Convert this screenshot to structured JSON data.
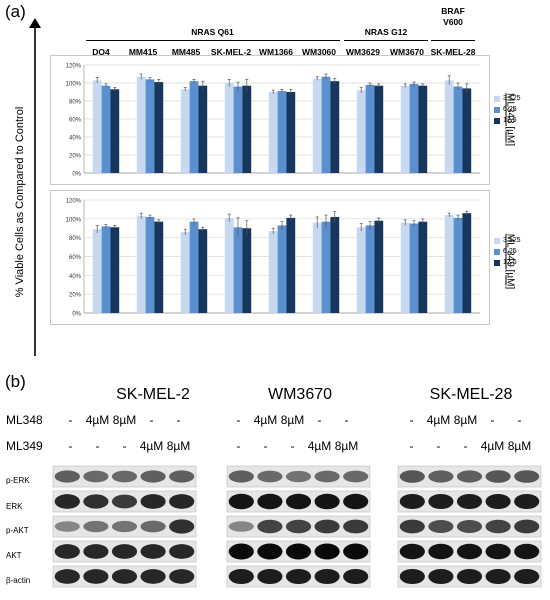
{
  "panel_a_label": "(a)",
  "panel_b_label": "(b)",
  "y_axis_label": "% Viable Cells as Compared to Control",
  "groups": [
    {
      "name": "NRAS Q61",
      "lines": [
        "DO4",
        "MM415",
        "MM485",
        "SK-MEL-2",
        "WM1366",
        "WM3060"
      ]
    },
    {
      "name": "NRAS G12",
      "lines": [
        "WM3629",
        "WM3670"
      ]
    },
    {
      "name": "BRAF\nV600",
      "lines": [
        "SK-MEL-28"
      ]
    }
  ],
  "colors": {
    "c1": "#c6d9f1",
    "c2": "#5b8fd0",
    "c3": "#17365d"
  },
  "chart_data": [
    {
      "type": "bar",
      "categories": [
        "DO4",
        "MM415",
        "MM485",
        "SK-MEL-2",
        "WM1366",
        "WM3060",
        "WM3629",
        "WM3670",
        "SK-MEL-28"
      ],
      "series": [
        {
          "name": "3.125",
          "values": [
            103,
            107,
            93,
            100,
            90,
            105,
            92,
            97,
            103
          ]
        },
        {
          "name": "6.25",
          "values": [
            97,
            104,
            102,
            96,
            91,
            107,
            98,
            99,
            96
          ]
        },
        {
          "name": "12.5",
          "values": [
            93,
            101,
            97,
            97,
            90,
            102,
            97,
            97,
            94
          ]
        }
      ],
      "errors": [
        [
          3,
          3,
          2,
          4,
          2,
          2,
          3,
          2,
          5
        ],
        [
          2,
          2,
          2,
          5,
          2,
          3,
          2,
          2,
          4
        ],
        [
          2,
          3,
          5,
          7,
          3,
          3,
          2,
          2,
          5
        ]
      ],
      "ylabel": "ML348 [µM]",
      "ylim": [
        0,
        120
      ],
      "yticks": [
        "0%",
        "20%",
        "40%",
        "60%",
        "80%",
        "100%",
        "120%"
      ],
      "grid": true,
      "legend": "right"
    },
    {
      "type": "bar",
      "categories": [
        "DO4",
        "MM415",
        "MM485",
        "SK-MEL-2",
        "WM1366",
        "WM3060",
        "WM3629",
        "WM3670",
        "SK-MEL-28"
      ],
      "series": [
        {
          "name": "3.125",
          "values": [
            89,
            103,
            86,
            101,
            87,
            96,
            91,
            96,
            104
          ]
        },
        {
          "name": "6.25",
          "values": [
            92,
            102,
            97,
            91,
            93,
            97,
            93,
            95,
            101
          ]
        },
        {
          "name": "12.5",
          "values": [
            91,
            97,
            89,
            90,
            101,
            102,
            98,
            97,
            106
          ]
        }
      ],
      "errors": [
        [
          4,
          3,
          3,
          4,
          3,
          6,
          4,
          3,
          2
        ],
        [
          2,
          2,
          3,
          10,
          4,
          7,
          4,
          3,
          3
        ],
        [
          2,
          2,
          2,
          8,
          3,
          6,
          3,
          3,
          2
        ]
      ],
      "ylabel": "ML 349 [µM]",
      "ylim": [
        0,
        120
      ],
      "yticks": [
        "0%",
        "20%",
        "40%",
        "60%",
        "80%",
        "100%",
        "120%"
      ],
      "grid": true,
      "legend": "right"
    }
  ],
  "blots": {
    "cell_lines": [
      "SK-MEL-2",
      "WM3670",
      "SK-MEL-28"
    ],
    "ml348_row": {
      "label": "ML348",
      "values": [
        "-",
        "4µM",
        "8µM",
        "-",
        "-"
      ]
    },
    "ml349_row": {
      "label": "ML349",
      "values": [
        "-",
        "-",
        "-",
        "4µM",
        "8µM"
      ]
    },
    "proteins": [
      "p-ERK",
      "ERK",
      "p-AKT",
      "AKT",
      "β-actin"
    ]
  }
}
